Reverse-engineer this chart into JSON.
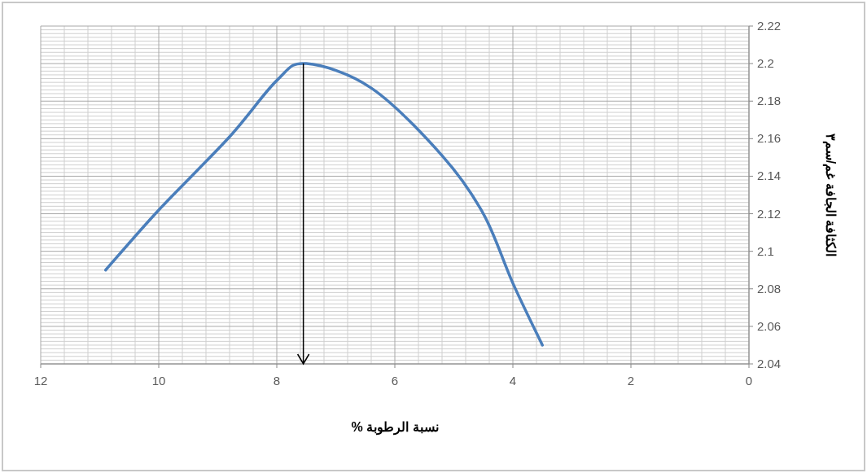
{
  "chart_data": {
    "type": "line",
    "xlabel": "نسبة الرطوبة %",
    "ylabel": "الكثافة الجافة غم/سم٣",
    "x": [
      10.9,
      10.0,
      8.8,
      8.0,
      7.5,
      6.4,
      5.2,
      4.5,
      4.0,
      3.5
    ],
    "series": [
      {
        "color": "#4a7ebb",
        "values": [
          2.09,
          2.122,
          2.161,
          2.191,
          2.2,
          2.187,
          2.151,
          2.12,
          2.083,
          2.05
        ]
      }
    ],
    "xlim": [
      12,
      0
    ],
    "xticks": [
      12,
      10,
      8,
      6,
      4,
      2,
      0
    ],
    "ylim": [
      2.04,
      2.22
    ],
    "yticks": [
      {
        "value": 2.04,
        "label": "2.04"
      },
      {
        "value": 2.06,
        "label": "2.06"
      },
      {
        "value": 2.08,
        "label": "2.08"
      },
      {
        "value": 2.1,
        "label": "2.1"
      },
      {
        "value": 2.12,
        "label": "2.12"
      },
      {
        "value": 2.14,
        "label": "2.14"
      },
      {
        "value": 2.16,
        "label": "2.16"
      },
      {
        "value": 2.18,
        "label": "2.18"
      },
      {
        "value": 2.2,
        "label": "2.2"
      },
      {
        "value": 2.22,
        "label": "2.22"
      }
    ],
    "grid": true,
    "marker": "none",
    "line_style": "solid",
    "ref_lines": [
      {
        "axis": "x",
        "value": 7.55,
        "color": "#000000"
      }
    ]
  }
}
